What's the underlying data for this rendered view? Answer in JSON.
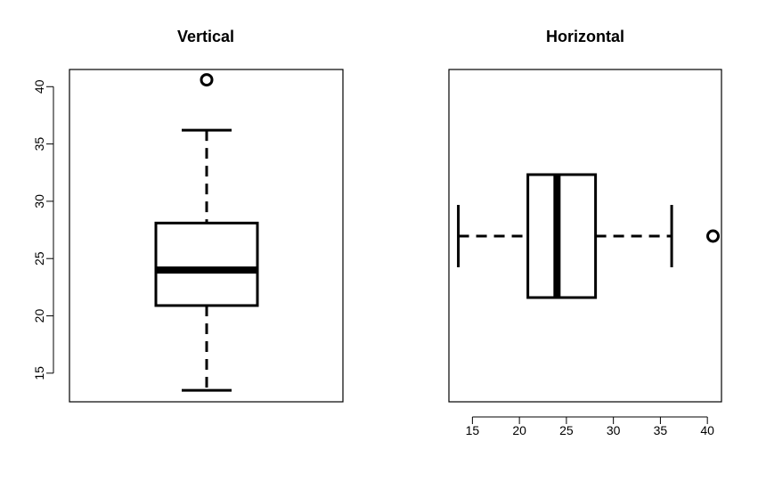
{
  "chart_data": [
    {
      "type": "boxplot",
      "title": "Vertical",
      "orientation": "vertical",
      "xlabel": "",
      "ylabel": "",
      "axis_range": [
        12.5,
        41.5
      ],
      "ticks": [
        15,
        20,
        25,
        30,
        35,
        40
      ],
      "tick_labels": [
        "15",
        "20",
        "25",
        "30",
        "35",
        "40"
      ],
      "box": {
        "whisker_low": 13.5,
        "q1": 20.9,
        "median": 24.0,
        "q3": 28.1,
        "whisker_high": 36.2,
        "outliers": [
          40.6
        ]
      },
      "grid": false
    },
    {
      "type": "boxplot",
      "title": "Horizontal",
      "orientation": "horizontal",
      "xlabel": "",
      "ylabel": "",
      "axis_range": [
        12.5,
        41.5
      ],
      "ticks": [
        15,
        20,
        25,
        30,
        35,
        40
      ],
      "tick_labels": [
        "15",
        "20",
        "25",
        "30",
        "35",
        "40"
      ],
      "box": {
        "whisker_low": 13.5,
        "q1": 20.9,
        "median": 24.0,
        "q3": 28.1,
        "whisker_high": 36.2,
        "outliers": [
          40.6
        ]
      },
      "grid": false
    }
  ],
  "colors": {
    "stroke": "#000000",
    "background": "#ffffff"
  }
}
